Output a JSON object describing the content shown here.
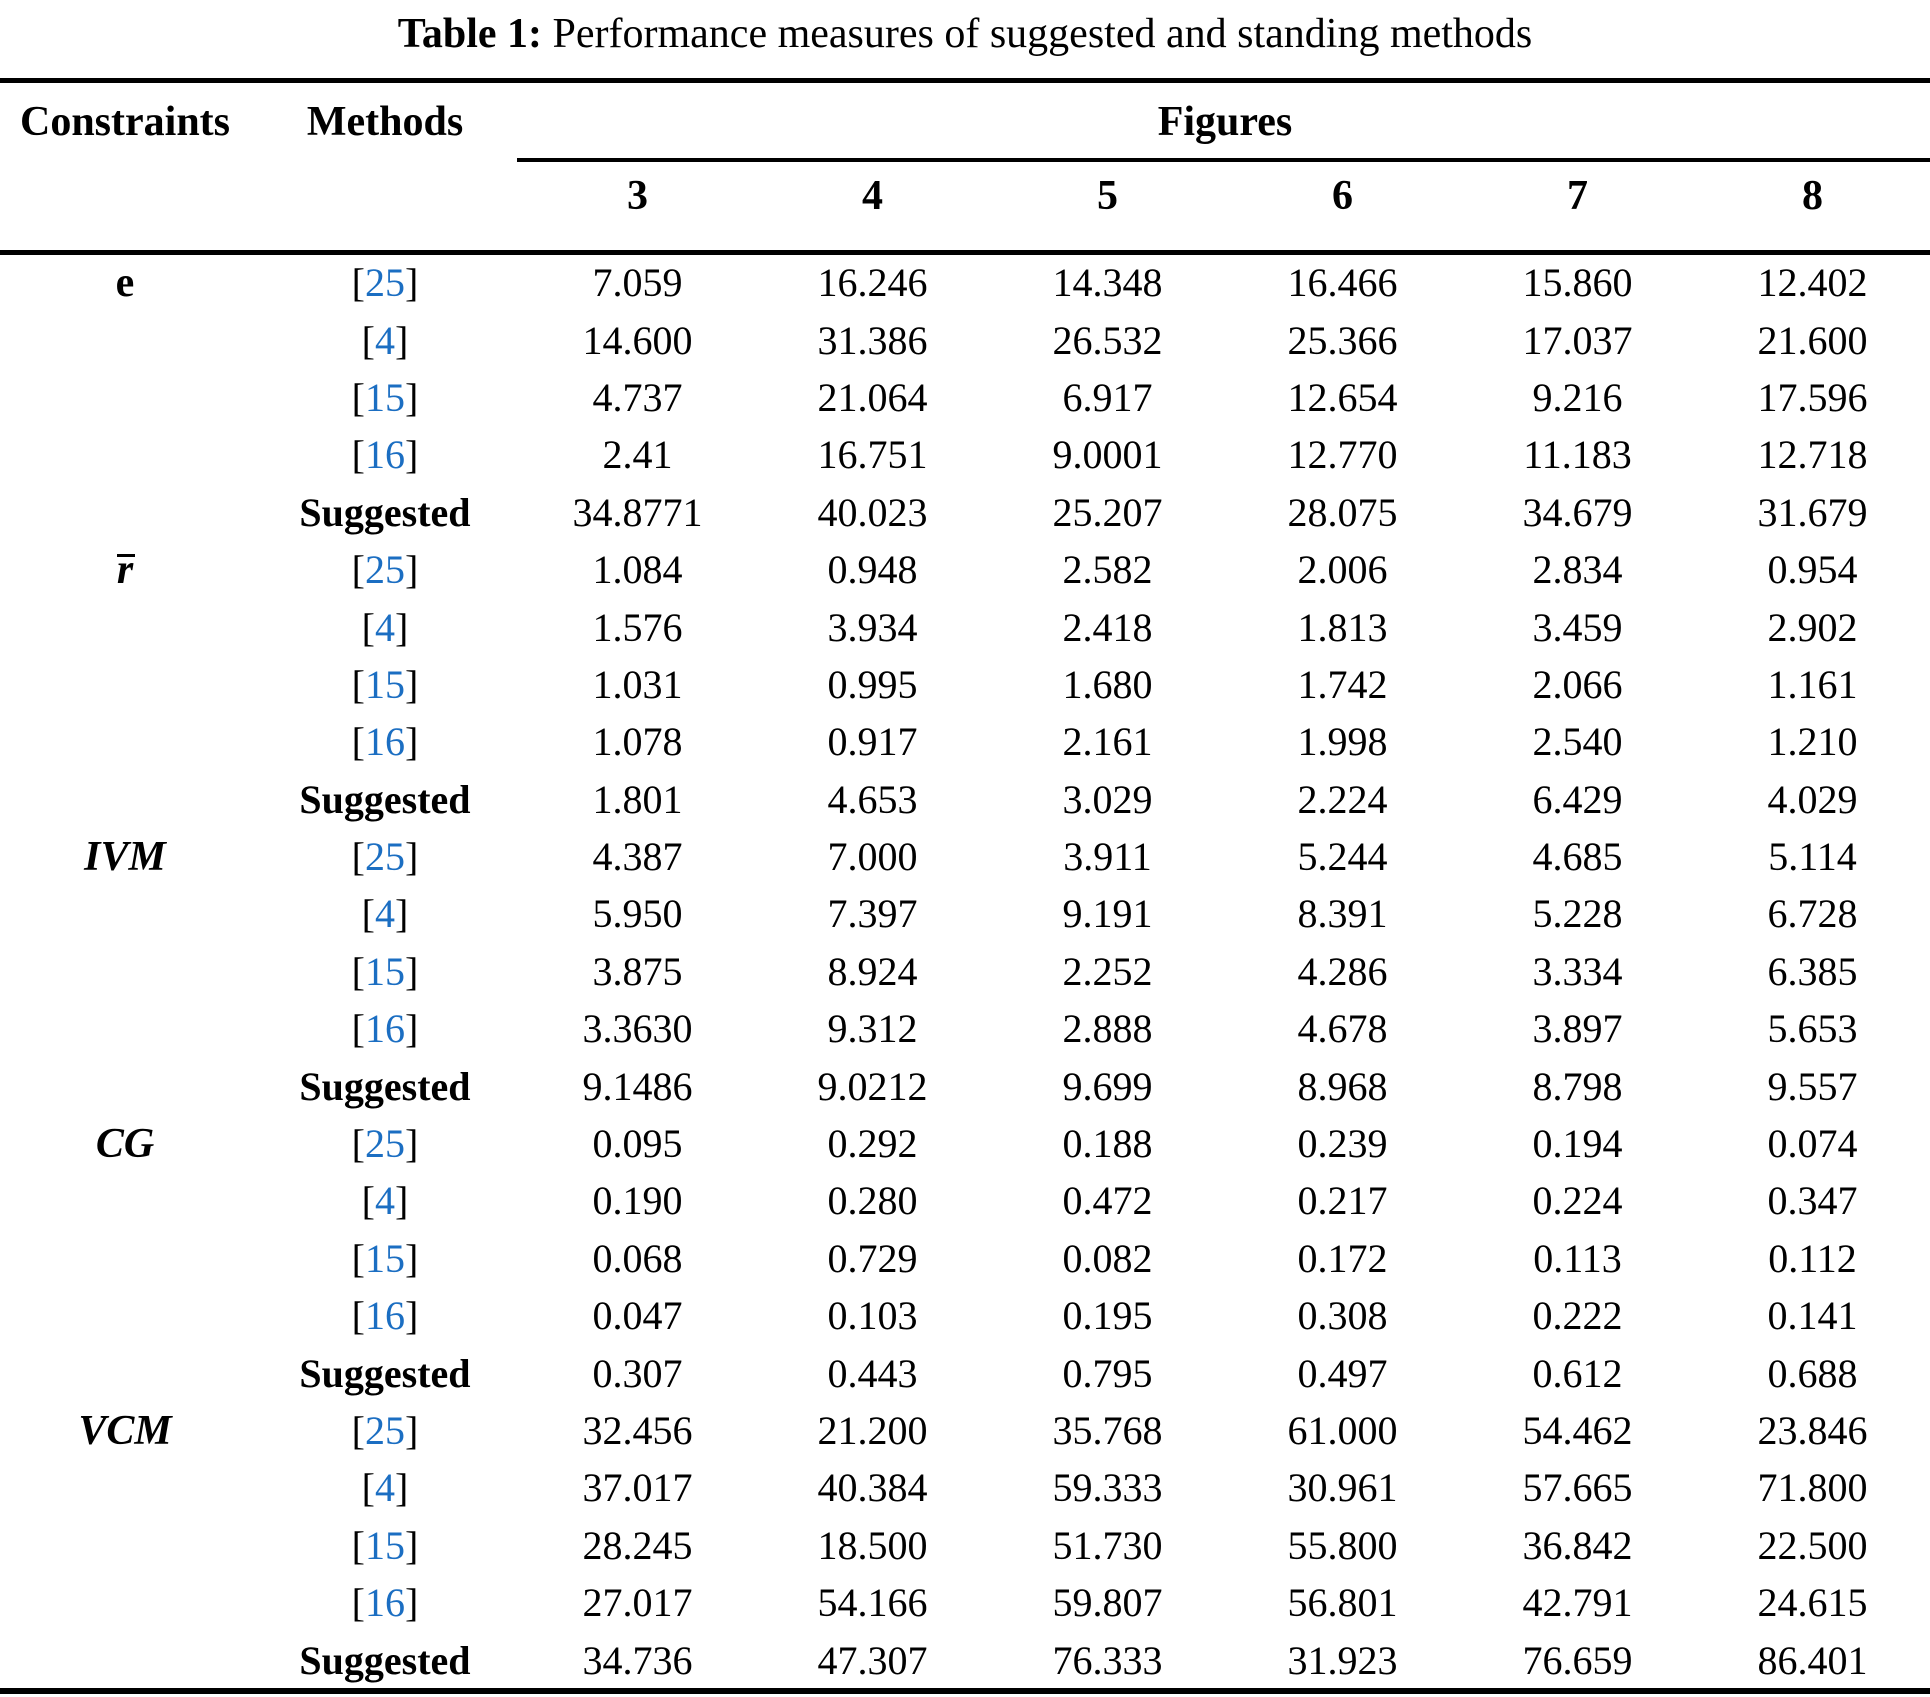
{
  "title": {
    "label": "Table 1:",
    "text": "Performance measures of suggested and standing methods"
  },
  "colors": {
    "citation_link": "#1b6ec2",
    "text": "#000000",
    "rule": "#000000"
  },
  "table": {
    "col_headers": {
      "constraints": "Constraints",
      "methods": "Methods",
      "figures": "Figures"
    },
    "figure_columns": [
      "3",
      "4",
      "5",
      "6",
      "7",
      "8"
    ],
    "groups": [
      {
        "constraint": "e",
        "italic": false,
        "overbar": false,
        "rows": [
          {
            "method": "[25]",
            "values": [
              "7.059",
              "16.246",
              "14.348",
              "16.466",
              "15.860",
              "12.402"
            ]
          },
          {
            "method": "[4]",
            "values": [
              "14.600",
              "31.386",
              "26.532",
              "25.366",
              "17.037",
              "21.600"
            ]
          },
          {
            "method": "[15]",
            "values": [
              "4.737",
              "21.064",
              "6.917",
              "12.654",
              "9.216",
              "17.596"
            ]
          },
          {
            "method": "[16]",
            "values": [
              "2.41",
              "16.751",
              "9.0001",
              "12.770",
              "11.183",
              "12.718"
            ]
          },
          {
            "method": "Suggested",
            "values": [
              "34.8771",
              "40.023",
              "25.207",
              "28.075",
              "34.679",
              "31.679"
            ]
          }
        ]
      },
      {
        "constraint": "r",
        "italic": true,
        "overbar": true,
        "rows": [
          {
            "method": "[25]",
            "values": [
              "1.084",
              "0.948",
              "2.582",
              "2.006",
              "2.834",
              "0.954"
            ]
          },
          {
            "method": "[4]",
            "values": [
              "1.576",
              "3.934",
              "2.418",
              "1.813",
              "3.459",
              "2.902"
            ]
          },
          {
            "method": "[15]",
            "values": [
              "1.031",
              "0.995",
              "1.680",
              "1.742",
              "2.066",
              "1.161"
            ]
          },
          {
            "method": "[16]",
            "values": [
              "1.078",
              "0.917",
              "2.161",
              "1.998",
              "2.540",
              "1.210"
            ]
          },
          {
            "method": "Suggested",
            "values": [
              "1.801",
              "4.653",
              "3.029",
              "2.224",
              "6.429",
              "4.029"
            ]
          }
        ]
      },
      {
        "constraint": "IVM",
        "italic": true,
        "overbar": false,
        "rows": [
          {
            "method": "[25]",
            "values": [
              "4.387",
              "7.000",
              "3.911",
              "5.244",
              "4.685",
              "5.114"
            ]
          },
          {
            "method": "[4]",
            "values": [
              "5.950",
              "7.397",
              "9.191",
              "8.391",
              "5.228",
              "6.728"
            ]
          },
          {
            "method": "[15]",
            "values": [
              "3.875",
              "8.924",
              "2.252",
              "4.286",
              "3.334",
              "6.385"
            ]
          },
          {
            "method": "[16]",
            "values": [
              "3.3630",
              "9.312",
              "2.888",
              "4.678",
              "3.897",
              "5.653"
            ]
          },
          {
            "method": "Suggested",
            "values": [
              "9.1486",
              "9.0212",
              "9.699",
              "8.968",
              "8.798",
              "9.557"
            ]
          }
        ]
      },
      {
        "constraint": "CG",
        "italic": true,
        "overbar": false,
        "rows": [
          {
            "method": "[25]",
            "values": [
              "0.095",
              "0.292",
              "0.188",
              "0.239",
              "0.194",
              "0.074"
            ]
          },
          {
            "method": "[4]",
            "values": [
              "0.190",
              "0.280",
              "0.472",
              "0.217",
              "0.224",
              "0.347"
            ]
          },
          {
            "method": "[15]",
            "values": [
              "0.068",
              "0.729",
              "0.082",
              "0.172",
              "0.113",
              "0.112"
            ]
          },
          {
            "method": "[16]",
            "values": [
              "0.047",
              "0.103",
              "0.195",
              "0.308",
              "0.222",
              "0.141"
            ]
          },
          {
            "method": "Suggested",
            "values": [
              "0.307",
              "0.443",
              "0.795",
              "0.497",
              "0.612",
              "0.688"
            ]
          }
        ]
      },
      {
        "constraint": "VCM",
        "italic": true,
        "overbar": false,
        "rows": [
          {
            "method": "[25]",
            "values": [
              "32.456",
              "21.200",
              "35.768",
              "61.000",
              "54.462",
              "23.846"
            ]
          },
          {
            "method": "[4]",
            "values": [
              "37.017",
              "40.384",
              "59.333",
              "30.961",
              "57.665",
              "71.800"
            ]
          },
          {
            "method": "[15]",
            "values": [
              "28.245",
              "18.500",
              "51.730",
              "55.800",
              "36.842",
              "22.500"
            ]
          },
          {
            "method": "[16]",
            "values": [
              "27.017",
              "54.166",
              "59.807",
              "56.801",
              "42.791",
              "24.615"
            ]
          },
          {
            "method": "Suggested",
            "values": [
              "34.736",
              "47.307",
              "76.333",
              "31.923",
              "76.659",
              "86.401"
            ]
          }
        ]
      }
    ]
  }
}
